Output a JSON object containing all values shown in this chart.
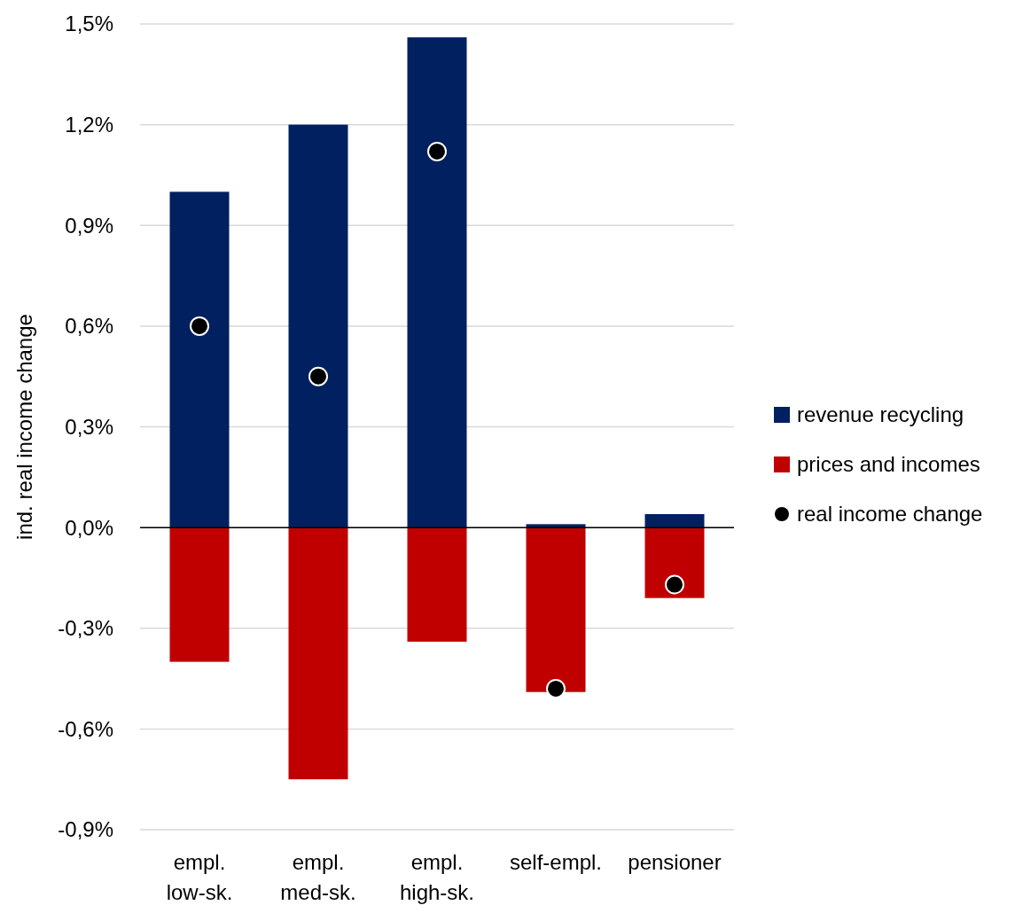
{
  "chart_data": {
    "type": "bar",
    "stacked": true,
    "ylabel": "ind. real income change",
    "categories": [
      "empl.\nlow-sk.",
      "empl.\nmed-sk.",
      "empl.\nhigh-sk.",
      "self-empl.",
      "pensioner"
    ],
    "series": [
      {
        "name": "revenue recycling",
        "color": "#002060",
        "values": [
          1.0,
          1.2,
          1.46,
          0.01,
          0.04
        ]
      },
      {
        "name": "prices and incomes",
        "color": "#c00000",
        "values": [
          -0.4,
          -0.75,
          -0.34,
          -0.49,
          -0.21
        ]
      },
      {
        "name": "real income change",
        "type": "scatter",
        "color": "#000000",
        "x": [
          "empl.\nlow-sk.",
          "empl.\nmed-sk.",
          "empl.\nhigh-sk.",
          "self-empl.",
          "pensioner"
        ],
        "values": [
          0.6,
          0.45,
          1.12,
          -0.48,
          -0.17
        ]
      }
    ],
    "ylim": [
      -0.9,
      1.5
    ],
    "yticks": [
      {
        "value": -0.9,
        "label": "-0,9%"
      },
      {
        "value": -0.6,
        "label": "-0,6%"
      },
      {
        "value": -0.3,
        "label": "-0,3%"
      },
      {
        "value": 0,
        "label": "0,0%"
      },
      {
        "value": 0.3,
        "label": "0,3%"
      },
      {
        "value": 0.6,
        "label": "0,6%"
      },
      {
        "value": 0.9,
        "label": "0,9%"
      },
      {
        "value": 1.2,
        "label": "1,2%"
      },
      {
        "value": 1.5,
        "label": "1,5%"
      }
    ],
    "grid": "y",
    "legend": "right",
    "marker": "circle"
  }
}
